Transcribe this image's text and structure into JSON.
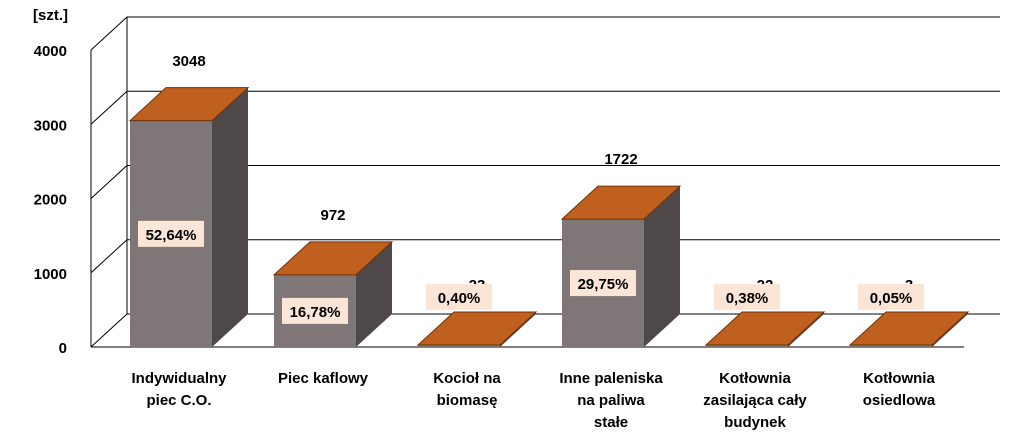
{
  "chart_data": {
    "type": "bar",
    "title": "",
    "xlabel": "",
    "ylabel": "[szt.]",
    "ylim": [
      0,
      4000
    ],
    "yticks": [
      0,
      1000,
      2000,
      3000,
      4000
    ],
    "grid": true,
    "legend": "none",
    "categories": [
      [
        "Indywidualny",
        "piec C.O."
      ],
      [
        "Piec kaflowy"
      ],
      [
        "Kocioł na",
        "biomasę"
      ],
      [
        "Inne paleniska",
        "na paliwa",
        "stałe"
      ],
      [
        "Kotłownia",
        "zasilająca cały",
        "budynek"
      ],
      [
        "Kotłownia",
        "osiedlowa"
      ]
    ],
    "values": [
      3048,
      972,
      23,
      1722,
      22,
      3
    ],
    "percent_labels": [
      "52,64%",
      "16,78%",
      "0,40%",
      "29,75%",
      "0,38%",
      "0,05%"
    ],
    "colors": {
      "bar_front": "#7f7677",
      "bar_side": "#4e4848",
      "bar_top": "#c0601f",
      "bar_top_edge": "#6e3208",
      "label_box": "#fbe5d6",
      "grid": "#000000"
    }
  }
}
